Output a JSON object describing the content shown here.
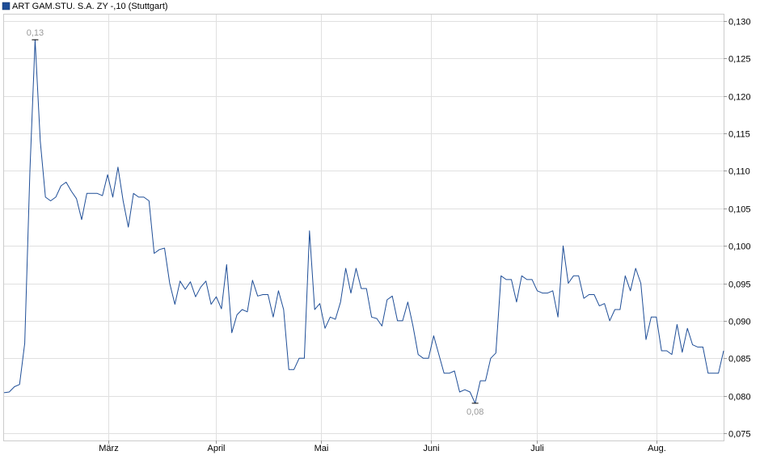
{
  "chart_data": {
    "type": "line",
    "title": "ART GAM.STU. S.A. ZY -,10 (Stuttgart)",
    "legend_color": "#1f4e97",
    "line_color": "#1f4e97",
    "ylim": [
      0.075,
      0.13
    ],
    "y_ticks": [
      {
        "value": 0.13,
        "label": "0,130"
      },
      {
        "value": 0.125,
        "label": "0,125"
      },
      {
        "value": 0.12,
        "label": "0,120"
      },
      {
        "value": 0.115,
        "label": "0,115"
      },
      {
        "value": 0.11,
        "label": "0,110"
      },
      {
        "value": 0.105,
        "label": "0,105"
      },
      {
        "value": 0.1,
        "label": "0,100"
      },
      {
        "value": 0.095,
        "label": "0,095"
      },
      {
        "value": 0.09,
        "label": "0,090"
      },
      {
        "value": 0.085,
        "label": "0,085"
      },
      {
        "value": 0.08,
        "label": "0,080"
      },
      {
        "value": 0.075,
        "label": "0,075"
      }
    ],
    "x_labels": [
      "März",
      "April",
      "Mai",
      "Juni",
      "Juli",
      "Aug."
    ],
    "annotations": {
      "max": {
        "label": "0,13",
        "value": 0.1275
      },
      "min": {
        "label": "0,08",
        "value": 0.079
      }
    },
    "series": [
      {
        "values": [
          0.0804,
          0.0805,
          0.0812,
          0.0815,
          0.087,
          0.11,
          0.1275,
          0.114,
          0.1065,
          0.106,
          0.1065,
          0.108,
          0.1085,
          0.1073,
          0.1063,
          0.1035,
          0.107,
          0.107,
          0.107,
          0.1067,
          0.1095,
          0.1065,
          0.1105,
          0.106,
          0.1025,
          0.107,
          0.1065,
          0.1065,
          0.106,
          0.099,
          0.0995,
          0.0997,
          0.095,
          0.0922,
          0.0953,
          0.0942,
          0.0952,
          0.0932,
          0.0945,
          0.0953,
          0.0922,
          0.0932,
          0.0916,
          0.0975,
          0.0884,
          0.0908,
          0.0915,
          0.0912,
          0.0954,
          0.0933,
          0.0935,
          0.0935,
          0.0905,
          0.094,
          0.0915,
          0.0835,
          0.0835,
          0.085,
          0.085,
          0.102,
          0.0915,
          0.0923,
          0.089,
          0.0905,
          0.0902,
          0.0925,
          0.097,
          0.0937,
          0.097,
          0.0943,
          0.0943,
          0.0905,
          0.0903,
          0.0893,
          0.0928,
          0.0933,
          0.09,
          0.09,
          0.0925,
          0.0893,
          0.0855,
          0.085,
          0.085,
          0.088,
          0.0855,
          0.083,
          0.083,
          0.0833,
          0.0805,
          0.0808,
          0.0805,
          0.079,
          0.082,
          0.082,
          0.085,
          0.0857,
          0.096,
          0.0955,
          0.0955,
          0.0925,
          0.096,
          0.0955,
          0.0955,
          0.094,
          0.0937,
          0.0937,
          0.094,
          0.0905,
          0.1,
          0.095,
          0.096,
          0.096,
          0.093,
          0.0935,
          0.0935,
          0.092,
          0.0923,
          0.09,
          0.0915,
          0.0915,
          0.096,
          0.094,
          0.097,
          0.095,
          0.0875,
          0.0905,
          0.0905,
          0.086,
          0.086,
          0.0855,
          0.0895,
          0.0858,
          0.089,
          0.0868,
          0.0865,
          0.0865,
          0.083,
          0.083,
          0.083,
          0.086
        ]
      }
    ]
  }
}
